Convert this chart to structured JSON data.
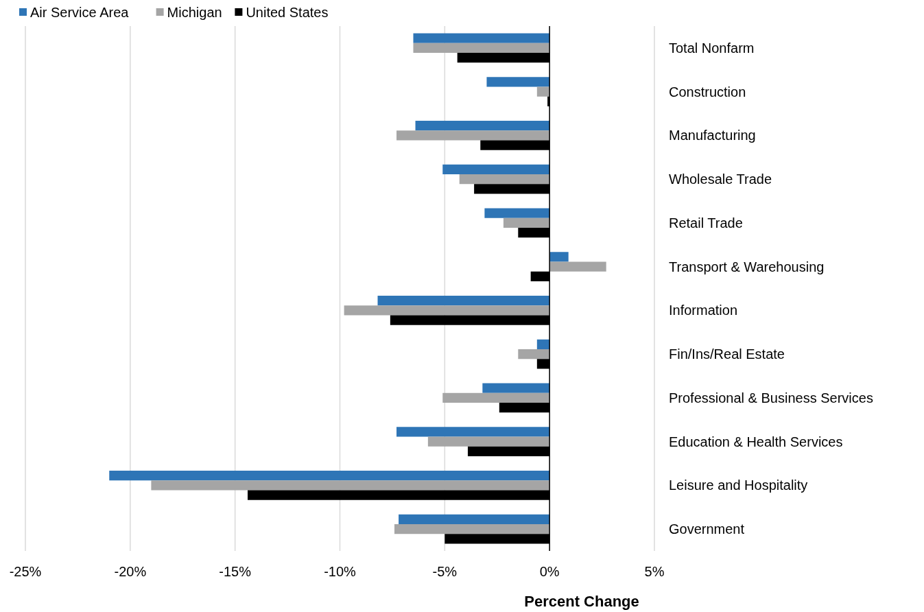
{
  "chart_data": {
    "type": "bar",
    "orientation": "horizontal",
    "xlabel": "Percent Change",
    "categories": [
      "Total Nonfarm",
      "Construction",
      "Manufacturing",
      "Wholesale Trade",
      "Retail Trade",
      "Transport & Warehousing",
      "Information",
      "Fin/Ins/Real Estate",
      "Professional & Business Services",
      "Education & Health Services",
      "Leisure and Hospitality",
      "Government"
    ],
    "series": [
      {
        "name": "Air Service Area",
        "color": "#2e75b6",
        "values": [
          -6.5,
          -3.0,
          -6.4,
          -5.1,
          -3.1,
          0.9,
          -8.2,
          -0.6,
          -3.2,
          -7.3,
          -21.0,
          -7.2
        ]
      },
      {
        "name": "Michigan",
        "color": "#a5a5a5",
        "values": [
          -6.5,
          -0.6,
          -7.3,
          -4.3,
          -2.2,
          2.7,
          -9.8,
          -1.5,
          -5.1,
          -5.8,
          -19.0,
          -7.4
        ]
      },
      {
        "name": "United States",
        "color": "#000000",
        "values": [
          -4.4,
          -0.1,
          -3.3,
          -3.6,
          -1.5,
          -0.9,
          -7.6,
          -0.6,
          -2.4,
          -3.9,
          -14.4,
          -5.0
        ]
      }
    ],
    "xlim": [
      -25,
      5
    ],
    "xticks": [
      {
        "value": -25,
        "label": "-25%"
      },
      {
        "value": -20,
        "label": "-20%"
      },
      {
        "value": -15,
        "label": "-15%"
      },
      {
        "value": -10,
        "label": "-10%"
      },
      {
        "value": -5,
        "label": "-5%"
      },
      {
        "value": 0,
        "label": "0%"
      },
      {
        "value": 5,
        "label": "5%"
      }
    ],
    "grid": "x",
    "legend": "top left"
  }
}
